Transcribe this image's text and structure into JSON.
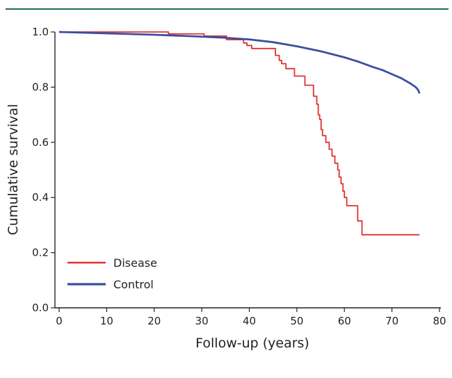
{
  "chart_data": {
    "type": "line",
    "title": "",
    "xlabel": "Follow-up (years)",
    "ylabel": "Cumulative survival",
    "xlim": [
      0,
      80
    ],
    "ylim": [
      0,
      1.0
    ],
    "x_ticks": [
      "0",
      "10",
      "20",
      "30",
      "40",
      "50",
      "60",
      "70",
      "80"
    ],
    "y_ticks": [
      "0.0",
      "0.2",
      "0.4",
      "0.6",
      "0.8",
      "1.0"
    ],
    "grid": false,
    "legend_position": "bottom-left",
    "series": [
      {
        "name": "Disease",
        "color": "#e03030",
        "style": "step",
        "x": [
          0,
          23,
          30.5,
          35.2,
          38.8,
          39.5,
          40.5,
          45.5,
          46.3,
          46.8,
          47.7,
          49.5,
          51.7,
          53.5,
          54.2,
          54.5,
          54.8,
          55.1,
          55.4,
          56.1,
          56.8,
          57.4,
          58.0,
          58.6,
          58.9,
          59.3,
          59.7,
          60.0,
          60.5,
          62.8,
          63.7,
          75.8
        ],
        "y": [
          1.0,
          0.993,
          0.985,
          0.972,
          0.96,
          0.951,
          0.94,
          0.915,
          0.897,
          0.885,
          0.867,
          0.84,
          0.807,
          0.767,
          0.738,
          0.7,
          0.683,
          0.646,
          0.624,
          0.6,
          0.575,
          0.55,
          0.524,
          0.5,
          0.474,
          0.45,
          0.423,
          0.4,
          0.37,
          0.315,
          0.265,
          0.265
        ]
      },
      {
        "name": "Control",
        "color": "#3a4fa0",
        "style": "line",
        "x": [
          0,
          10,
          20,
          30,
          35,
          40,
          45,
          50,
          55,
          60,
          63,
          66,
          68,
          70,
          72,
          74,
          75,
          75.5,
          75.8
        ],
        "y": [
          1.0,
          0.995,
          0.99,
          0.983,
          0.979,
          0.973,
          0.963,
          0.948,
          0.93,
          0.908,
          0.892,
          0.873,
          0.862,
          0.847,
          0.832,
          0.812,
          0.8,
          0.79,
          0.777
        ]
      }
    ],
    "legend": [
      {
        "name": "Disease",
        "color": "#e03030"
      },
      {
        "name": "Control",
        "color": "#3a4fa0"
      }
    ]
  },
  "colors": {
    "top_rule": "#1b6b5c",
    "axis": "#222222"
  }
}
